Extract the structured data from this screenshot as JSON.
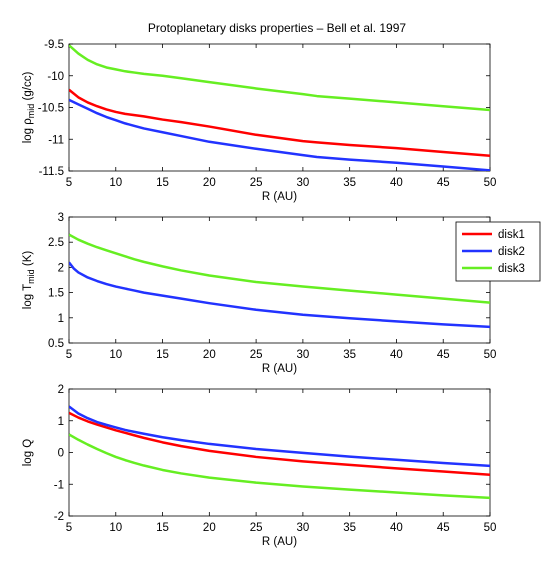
{
  "title": "Protoplanetary disks properties – Bell et al. 1997",
  "legend": {
    "placement": "right, beside middle panel",
    "entries": [
      {
        "label": "disk1",
        "color": "#ff0000"
      },
      {
        "label": "disk2",
        "color": "#2233ff"
      },
      {
        "label": "disk3",
        "color": "#66ee22"
      }
    ]
  },
  "chart_data": [
    {
      "type": "line",
      "title": "Protoplanetary disks properties – Bell et al. 1997",
      "xlabel": "R (AU)",
      "ylabel_parts": {
        "pre": "log ρ",
        "sub": "mid",
        "post": " (g/cc)"
      },
      "xlim": [
        5,
        50
      ],
      "ylim": [
        -11.5,
        -9.5
      ],
      "xticks": [
        5,
        10,
        15,
        20,
        25,
        30,
        35,
        40,
        45,
        50
      ],
      "yticks": [
        -11.5,
        -11,
        -10.5,
        -10,
        -9.5
      ],
      "ytick_labels": [
        "-11.5",
        "-11",
        "-10.5",
        "-10",
        "-9.5"
      ],
      "grid": false,
      "series": [
        {
          "name": "disk1",
          "color": "#ff0000",
          "x": [
            5,
            6,
            7,
            8,
            9,
            10,
            11,
            12,
            13,
            15,
            17,
            20,
            25,
            30,
            31.5,
            35,
            40,
            45,
            50
          ],
          "y": [
            -10.22,
            -10.34,
            -10.42,
            -10.48,
            -10.53,
            -10.57,
            -10.6,
            -10.62,
            -10.64,
            -10.69,
            -10.73,
            -10.8,
            -10.93,
            -11.03,
            -11.05,
            -11.09,
            -11.14,
            -11.2,
            -11.26
          ]
        },
        {
          "name": "disk2",
          "color": "#2233ff",
          "x": [
            5,
            6,
            7,
            8,
            9,
            10,
            11,
            12,
            13,
            15,
            17,
            20,
            25,
            30,
            31.5,
            35,
            40,
            45,
            50
          ],
          "y": [
            -10.38,
            -10.45,
            -10.52,
            -10.59,
            -10.65,
            -10.7,
            -10.75,
            -10.79,
            -10.83,
            -10.89,
            -10.95,
            -11.04,
            -11.15,
            -11.25,
            -11.28,
            -11.32,
            -11.37,
            -11.43,
            -11.49
          ]
        },
        {
          "name": "disk3",
          "color": "#66ee22",
          "x": [
            5,
            6,
            7,
            8,
            9,
            10,
            11,
            12,
            13,
            15,
            17,
            20,
            25,
            30,
            31.5,
            35,
            40,
            45,
            50
          ],
          "y": [
            -9.52,
            -9.65,
            -9.75,
            -9.82,
            -9.87,
            -9.9,
            -9.93,
            -9.95,
            -9.97,
            -10.0,
            -10.04,
            -10.1,
            -10.2,
            -10.29,
            -10.32,
            -10.36,
            -10.42,
            -10.48,
            -10.54
          ]
        }
      ]
    },
    {
      "type": "line",
      "xlabel": "R (AU)",
      "ylabel_parts": {
        "pre": "log T",
        "sub": "mid",
        "post": " (K)"
      },
      "xlim": [
        5,
        50
      ],
      "ylim": [
        0.5,
        3
      ],
      "xticks": [
        5,
        10,
        15,
        20,
        25,
        30,
        35,
        40,
        45,
        50
      ],
      "yticks": [
        0.5,
        1,
        1.5,
        2,
        2.5,
        3
      ],
      "ytick_labels": [
        "0.5",
        "1",
        "1.5",
        "2",
        "2.5",
        "3"
      ],
      "grid": false,
      "series": [
        {
          "name": "disk1",
          "color": "#ff0000",
          "x": [],
          "y": []
        },
        {
          "name": "disk2",
          "color": "#2233ff",
          "x": [
            5,
            5.5,
            6,
            7,
            8,
            9,
            10,
            11,
            12,
            13,
            15,
            17,
            20,
            25,
            30,
            35,
            40,
            45,
            50
          ],
          "y": [
            2.1,
            1.98,
            1.9,
            1.8,
            1.73,
            1.67,
            1.62,
            1.58,
            1.54,
            1.5,
            1.44,
            1.38,
            1.29,
            1.16,
            1.06,
            0.99,
            0.93,
            0.87,
            0.82
          ]
        },
        {
          "name": "disk3",
          "color": "#66ee22",
          "x": [
            5,
            6,
            7,
            8,
            9,
            10,
            11,
            12,
            13,
            15,
            17,
            20,
            25,
            30,
            35,
            40,
            45,
            50
          ],
          "y": [
            2.65,
            2.55,
            2.47,
            2.4,
            2.34,
            2.28,
            2.22,
            2.16,
            2.11,
            2.02,
            1.94,
            1.84,
            1.71,
            1.62,
            1.54,
            1.46,
            1.38,
            1.3
          ]
        }
      ]
    },
    {
      "type": "line",
      "xlabel": "R (AU)",
      "ylabel_parts": {
        "pre": "log Q",
        "sub": "",
        "post": ""
      },
      "xlim": [
        5,
        50
      ],
      "ylim": [
        -2,
        2
      ],
      "xticks": [
        5,
        10,
        15,
        20,
        25,
        30,
        35,
        40,
        45,
        50
      ],
      "yticks": [
        -2,
        -1,
        0,
        1,
        2
      ],
      "ytick_labels": [
        "-2",
        "-1",
        "0",
        "1",
        "2"
      ],
      "grid": false,
      "series": [
        {
          "name": "disk1",
          "color": "#ff0000",
          "x": [
            5,
            6,
            7,
            8,
            9,
            10,
            11,
            12,
            13,
            15,
            17,
            20,
            25,
            30,
            35,
            40,
            45,
            50
          ],
          "y": [
            1.25,
            1.1,
            0.98,
            0.88,
            0.79,
            0.7,
            0.62,
            0.54,
            0.46,
            0.32,
            0.2,
            0.05,
            -0.14,
            -0.28,
            -0.39,
            -0.5,
            -0.6,
            -0.7
          ]
        },
        {
          "name": "disk2",
          "color": "#2233ff",
          "x": [
            5,
            6,
            7,
            8,
            9,
            10,
            11,
            12,
            13,
            15,
            17,
            20,
            25,
            30,
            35,
            40,
            45,
            50
          ],
          "y": [
            1.45,
            1.23,
            1.08,
            0.96,
            0.87,
            0.79,
            0.71,
            0.65,
            0.59,
            0.48,
            0.39,
            0.27,
            0.11,
            -0.01,
            -0.13,
            -0.23,
            -0.33,
            -0.42
          ]
        },
        {
          "name": "disk3",
          "color": "#66ee22",
          "x": [
            5,
            6,
            7,
            8,
            9,
            10,
            11,
            12,
            13,
            15,
            17,
            20,
            25,
            30,
            35,
            40,
            45,
            50
          ],
          "y": [
            0.57,
            0.4,
            0.25,
            0.11,
            -0.02,
            -0.14,
            -0.24,
            -0.33,
            -0.41,
            -0.55,
            -0.66,
            -0.79,
            -0.95,
            -1.07,
            -1.17,
            -1.26,
            -1.35,
            -1.43
          ]
        }
      ]
    }
  ]
}
